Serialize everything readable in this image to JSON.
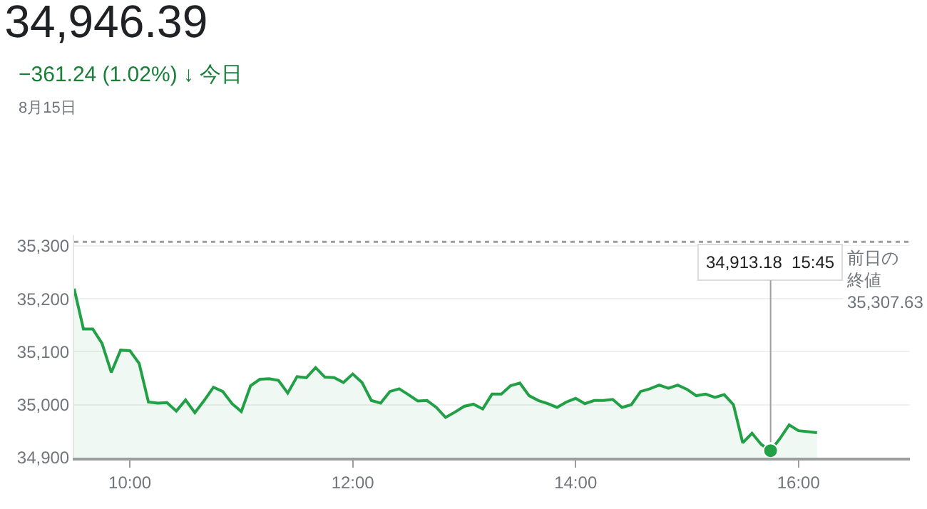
{
  "chart_data": {
    "type": "area",
    "title": "34,946.39",
    "subtitle": "−361.24 (1.02%) ↓ 今日",
    "annotations": [
      "8月15日",
      {
        "text": "34,913.18  15:45",
        "x": 15.75,
        "y": 34913.18
      }
    ],
    "series": [
      {
        "color": "#22a046",
        "marker": "none",
        "x": [
          9.5,
          9.5833,
          9.6667,
          9.75,
          9.8333,
          9.9167,
          10.0,
          10.0833,
          10.1667,
          10.25,
          10.3333,
          10.4167,
          10.5,
          10.5833,
          10.6667,
          10.75,
          10.8333,
          10.9167,
          11.0,
          11.0833,
          11.1667,
          11.25,
          11.3333,
          11.4167,
          11.5,
          11.5833,
          11.6667,
          11.75,
          11.8333,
          11.9167,
          12.0,
          12.0833,
          12.1667,
          12.25,
          12.3333,
          12.4167,
          12.5,
          12.5833,
          12.6667,
          12.75,
          12.8333,
          12.9167,
          13.0,
          13.0833,
          13.1667,
          13.25,
          13.3333,
          13.4167,
          13.5,
          13.5833,
          13.6667,
          13.75,
          13.8333,
          13.9167,
          14.0,
          14.0833,
          14.1667,
          14.25,
          14.3333,
          14.4167,
          14.5,
          14.5833,
          14.6667,
          14.75,
          14.8333,
          14.9167,
          15.0,
          15.0833,
          15.1667,
          15.25,
          15.3333,
          15.4167,
          15.5,
          15.5833,
          15.6667,
          15.75,
          15.8333,
          15.9167,
          16.0,
          16.0833,
          16.1667
        ],
        "values": [
          35219.0,
          35143,
          35143,
          35116,
          35061,
          35103,
          35102,
          35078,
          35005,
          35003,
          35004,
          34988,
          35009,
          34985,
          35008,
          35033,
          35025,
          35002,
          34987,
          35036,
          35048,
          35049,
          35046,
          35022,
          35053,
          35051,
          35070,
          35052,
          35051,
          35042,
          35058,
          35042,
          35008,
          35003,
          35025,
          35030,
          35019,
          35007,
          35008,
          34995,
          34976,
          34986,
          34997,
          35001,
          34992,
          35020,
          35020,
          35036,
          35041,
          35017,
          35008,
          35002,
          34995,
          35005,
          35012,
          35002,
          35008,
          35008,
          35010,
          34995,
          35000,
          35025,
          35030,
          35037,
          35031,
          35037,
          35029,
          35017,
          35020,
          35014,
          35019,
          35000,
          34928,
          34946,
          34925,
          34913.18,
          34936,
          34962,
          34951,
          34949,
          34947
        ]
      }
    ],
    "xlim": [
      9.5,
      17
    ],
    "xticks": [
      {
        "value": 10,
        "label": "10:00"
      },
      {
        "value": 12,
        "label": "12:00"
      },
      {
        "value": 14,
        "label": "14:00"
      },
      {
        "value": 16,
        "label": "16:00"
      }
    ],
    "ylim": [
      34900,
      35320
    ],
    "yticks": [
      {
        "value": 34900,
        "label": "34,900"
      },
      {
        "value": 35000,
        "label": "35,000"
      },
      {
        "value": 35100,
        "label": "35,100"
      },
      {
        "value": 35200,
        "label": "35,200"
      },
      {
        "value": 35300,
        "label": "35,300"
      }
    ],
    "grid": "y",
    "ref_lines": [
      {
        "axis": "y",
        "value": 35307.63,
        "label": "前日の終値\n35,307.63",
        "color": "#9e9e9e",
        "line_style": "dotted"
      }
    ]
  }
}
